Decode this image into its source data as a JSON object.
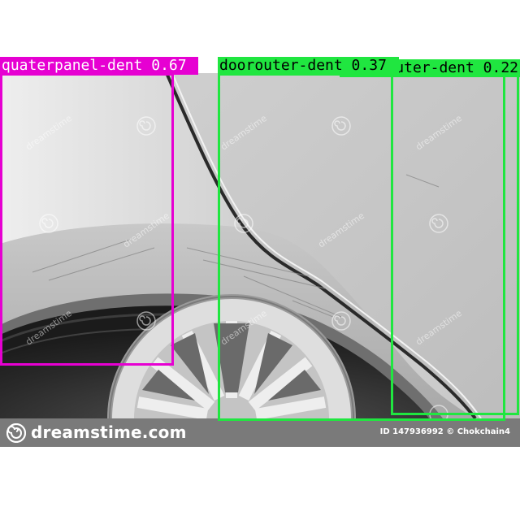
{
  "image": {
    "watermark_text": "dreamstime",
    "footer": {
      "brand": "dreamstime.com",
      "stock_id": "ID 147936992 © Chokchain4",
      "background": "#7a7a7a",
      "logo_icon": "dreamstime-spiral-icon"
    }
  },
  "detections": [
    {
      "label": "quaterpanel-dent 0.67",
      "color": "#e600d2",
      "text_color": "#ffffff"
    },
    {
      "label": "doorouter-dent 0.37",
      "color": "#20e640",
      "text_color": "#000000"
    },
    {
      "label": "doorouter-dent 0.22",
      "color": "#20e640",
      "text_color": "#000000"
    }
  ],
  "colors": {
    "magenta": "#e600d2",
    "green": "#20e640"
  }
}
